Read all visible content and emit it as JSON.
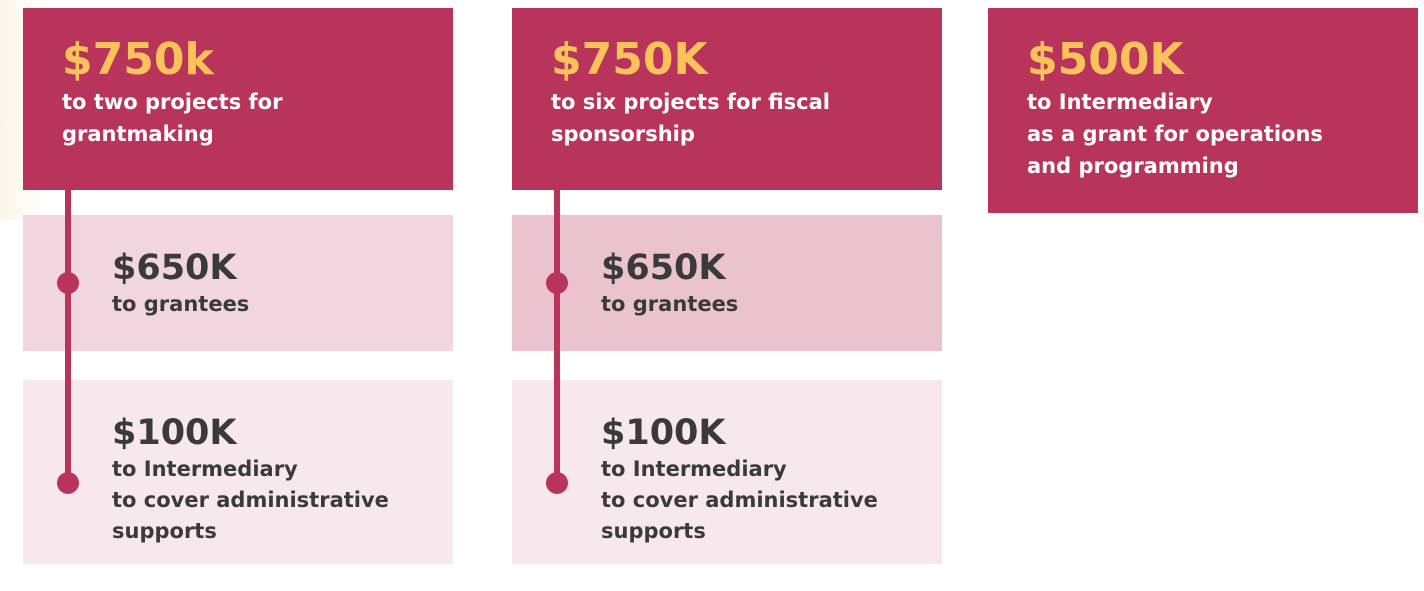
{
  "columns": [
    {
      "amount": "$750k",
      "lines": [
        "to two projects for",
        "grantmaking"
      ],
      "items": [
        {
          "amount": "$650K",
          "lines": [
            "to grantees"
          ]
        },
        {
          "amount": "$100K",
          "lines": [
            "to Intermediary",
            "to cover administrative",
            "supports"
          ]
        }
      ]
    },
    {
      "amount": "$750K",
      "lines": [
        "to six projects for fiscal",
        "sponsorship"
      ],
      "items": [
        {
          "amount": "$650K",
          "lines": [
            "to grantees"
          ]
        },
        {
          "amount": "$100K",
          "lines": [
            "to Intermediary",
            "to cover administrative",
            "supports"
          ]
        }
      ]
    },
    {
      "amount": "$500K",
      "lines": [
        "to Intermediary",
        "as a grant for operations",
        "and programming"
      ],
      "items": []
    }
  ]
}
